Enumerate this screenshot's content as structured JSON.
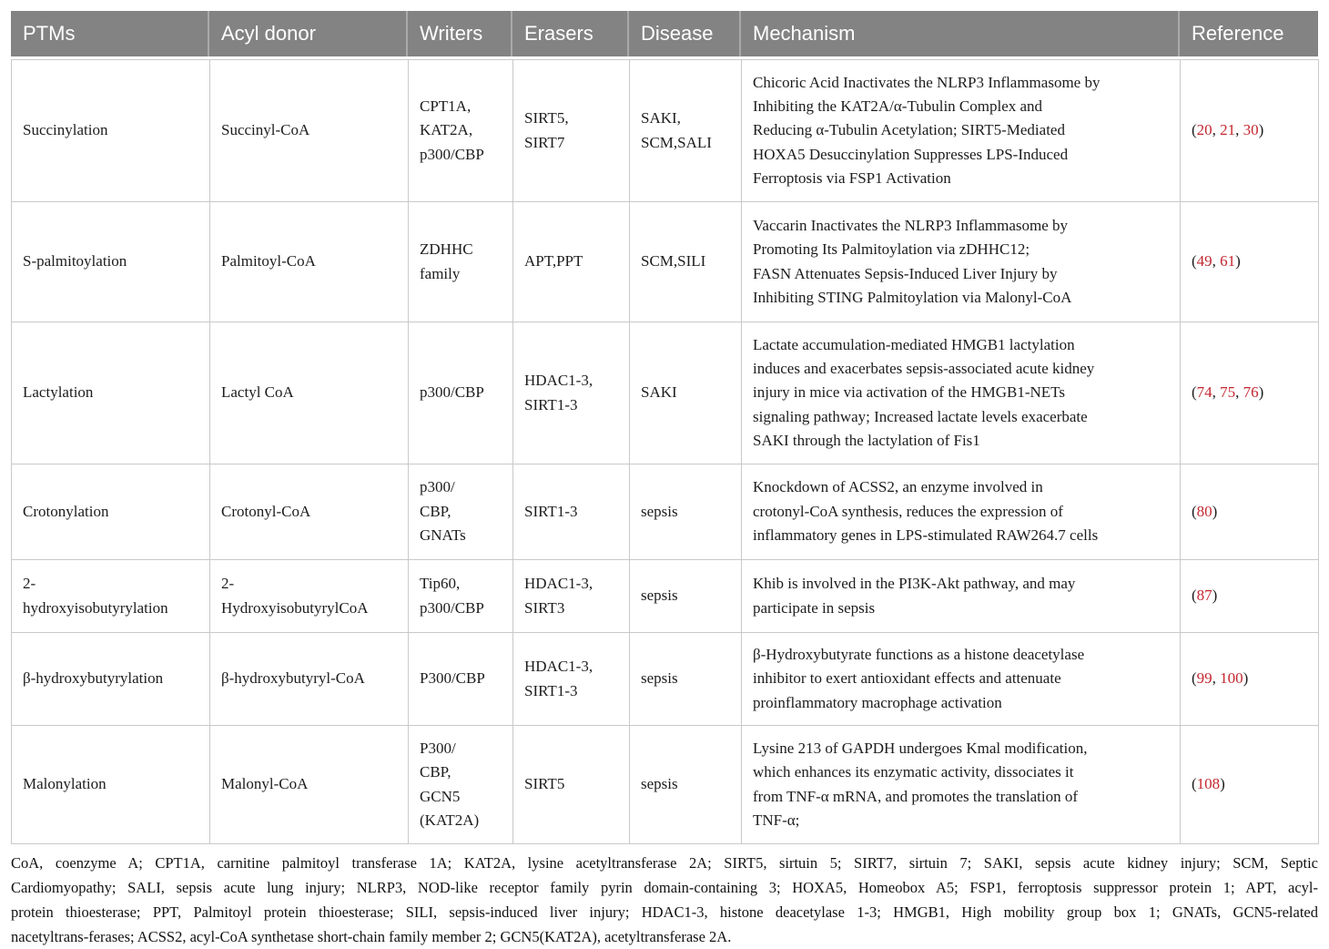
{
  "colors": {
    "header_background": "#838383",
    "header_text": "#ffffff",
    "cell_border": "#c9c9c9",
    "reference_red": "#c4262e",
    "body_text": "#1c1c1c"
  },
  "table": {
    "columns": [
      "PTMs",
      "Acyl donor",
      "Writers",
      "Erasers",
      "Disease",
      "Mechanism",
      "Reference"
    ],
    "rows": [
      {
        "ptm": "Succinylation",
        "acyl_donor": "Succinyl-CoA",
        "writers": "CPT1A,\nKAT2A,\np300/CBP",
        "erasers": "SIRT5,\nSIRT7",
        "disease": "SAKI,\nSCM,SALI",
        "mechanism": "Chicoric Acid Inactivates the NLRP3 Inflammasome by\nInhibiting the KAT2A/α-Tubulin Complex and\nReducing α-Tubulin Acetylation; SIRT5-Mediated\nHOXA5 Desuccinylation Suppresses LPS-Induced\nFerroptosis via FSP1 Activation",
        "reference": [
          "20",
          "21",
          "30"
        ]
      },
      {
        "ptm": "S-palmitoylation",
        "acyl_donor": "Palmitoyl-CoA",
        "writers": "ZDHHC\nfamily",
        "erasers": "APT,PPT",
        "disease": "SCM,SILI",
        "mechanism": "Vaccarin Inactivates the NLRP3 Inflammasome by\nPromoting Its Palmitoylation via zDHHC12;\nFASN Attenuates Sepsis-Induced Liver Injury by\nInhibiting STING Palmitoylation via Malonyl-CoA",
        "reference": [
          "49",
          "61"
        ]
      },
      {
        "ptm": "Lactylation",
        "acyl_donor": "Lactyl CoA",
        "writers": "p300/CBP",
        "erasers": "HDAC1-3,\nSIRT1-3",
        "disease": "SAKI",
        "mechanism": "Lactate accumulation-mediated HMGB1 lactylation\ninduces and exacerbates sepsis-associated acute kidney\ninjury in mice via activation of the HMGB1-NETs\nsignaling pathway; Increased lactate levels exacerbate\nSAKI through the lactylation of Fis1",
        "reference": [
          "74",
          "75",
          "76"
        ]
      },
      {
        "ptm": "Crotonylation",
        "acyl_donor": "Crotonyl-CoA",
        "writers": "p300/\nCBP,\nGNATs",
        "erasers": "SIRT1-3",
        "disease": "sepsis",
        "mechanism": "Knockdown of ACSS2, an enzyme involved in\ncrotonyl-CoA synthesis, reduces the expression of\ninflammatory genes in LPS-stimulated RAW264.7 cells",
        "reference": [
          "80"
        ]
      },
      {
        "ptm": "2-\nhydroxyisobutyrylation",
        "acyl_donor": "2-\nHydroxyisobutyrylCoA",
        "writers": "Tip60,\np300/CBP",
        "erasers": "HDAC1-3,\nSIRT3",
        "disease": "sepsis",
        "mechanism": "Khib is involved in the PI3K-Akt pathway, and may\nparticipate in sepsis",
        "reference": [
          "87"
        ]
      },
      {
        "ptm": "β-hydroxybutyrylation",
        "acyl_donor": "β-hydroxybutyryl-CoA",
        "writers": "P300/CBP",
        "erasers": "HDAC1-3,\nSIRT1-3",
        "disease": "sepsis",
        "mechanism": "β-Hydroxybutyrate functions as a histone deacetylase\ninhibitor to exert antioxidant effects and attenuate\nproinflammatory macrophage activation",
        "reference": [
          "99",
          "100"
        ]
      },
      {
        "ptm": "Malonylation",
        "acyl_donor": "Malonyl-CoA",
        "writers": "P300/\nCBP,\nGCN5\n(KAT2A)",
        "erasers": "SIRT5",
        "disease": "sepsis",
        "mechanism": "Lysine 213 of GAPDH undergoes Kmal modification,\nwhich enhances its enzymatic activity, dissociates it\nfrom TNF-α mRNA, and promotes the translation of\nTNF-α;",
        "reference": [
          "108"
        ]
      }
    ]
  },
  "footnote": {
    "lines": [
      "CoA, coenzyme A; CPT1A, carnitine palmitoyl transferase 1A; KAT2A, lysine acetyltransferase 2A; SIRT5, sirtuin 5; SIRT7, sirtuin 7; SAKI, sepsis acute kidney injury; SCM, Septic",
      "Cardiomyopathy; SALI, sepsis acute lung injury; NLRP3, NOD-like receptor family pyrin domain-containing 3; HOXA5, Homeobox A5; FSP1, ferroptosis suppressor protein 1; APT, acyl-",
      "protein thioesterase; PPT, Palmitoyl protein thioesterase; SILI, sepsis-induced liver injury; HDAC1-3, histone deacetylase 1-3; HMGB1, High mobility group box 1; GNATs, GCN5-related",
      "nacetyltrans-ferases; ACSS2, acyl-CoA synthetase short-chain family member 2; GCN5(KAT2A), acetyltransferase 2A."
    ]
  }
}
